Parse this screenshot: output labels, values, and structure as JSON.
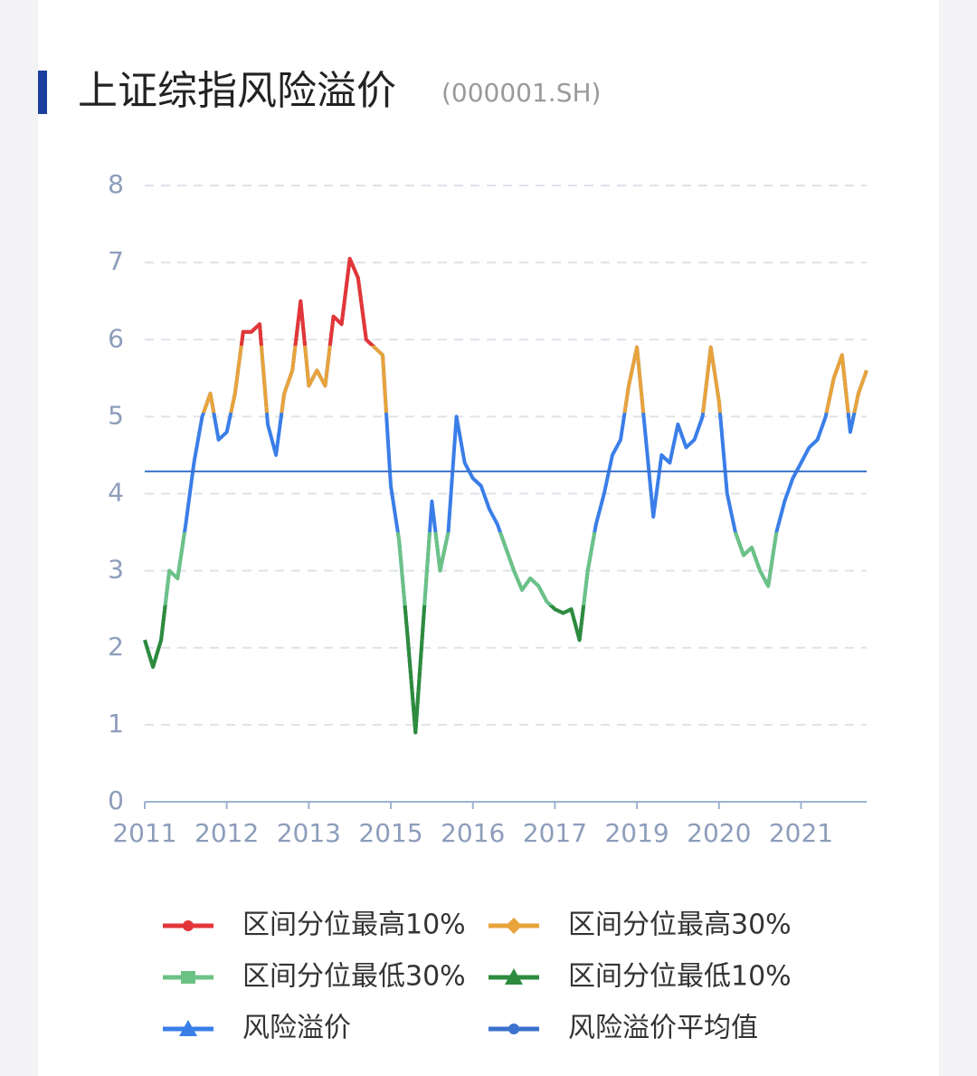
{
  "chart_data": {
    "type": "line",
    "title": "上证综指风险溢价",
    "subtitle": "(000001.SH)",
    "categories": [
      "2011",
      null,
      null,
      null,
      null,
      null,
      null,
      null,
      null,
      null,
      "2012",
      null,
      null,
      null,
      null,
      null,
      null,
      null,
      null,
      null,
      "2013",
      null,
      null,
      null,
      null,
      null,
      null,
      null,
      null,
      null,
      "2015",
      null,
      null,
      null,
      null,
      null,
      null,
      null,
      null,
      null,
      "2016",
      null,
      null,
      null,
      null,
      null,
      null,
      null,
      null,
      null,
      "2017",
      null,
      null,
      null,
      null,
      null,
      null,
      null,
      null,
      null,
      "2019",
      null,
      null,
      null,
      null,
      null,
      null,
      null,
      null,
      null,
      "2020",
      null,
      null,
      null,
      null,
      null,
      null,
      null,
      null,
      null,
      "2021",
      null,
      null,
      null,
      null,
      null,
      null,
      null,
      null
    ],
    "ylim": [
      0,
      8
    ],
    "yticks": [
      0,
      1,
      2,
      3,
      4,
      5,
      6,
      7,
      8
    ],
    "grid": true,
    "series": [
      {
        "name": "区间分位最高10%",
        "color": "#e2363a",
        "symbol": "circle",
        "threshold": 5.92
      },
      {
        "name": "区间分位最高30%",
        "color": "#e8a33b",
        "symbol": "diamond",
        "threshold": 5.05
      },
      {
        "name": "区间分位最低30%",
        "color": "#6cc285",
        "symbol": "rect",
        "threshold": 3.5
      },
      {
        "name": "区间分位最低10%",
        "color": "#2e8b3e",
        "symbol": "triangle",
        "threshold": 2.55
      },
      {
        "name": "风险溢价",
        "color": "#3a7ee8",
        "symbol": "triangle",
        "values": [
          2.1,
          1.75,
          2.1,
          3.0,
          2.9,
          3.6,
          4.4,
          5.0,
          5.3,
          4.7,
          4.8,
          5.3,
          6.1,
          6.1,
          6.2,
          4.9,
          4.5,
          5.3,
          5.6,
          6.5,
          5.4,
          5.6,
          5.4,
          6.3,
          6.2,
          7.05,
          6.8,
          6.0,
          5.9,
          5.8,
          4.1,
          3.4,
          2.2,
          0.9,
          2.4,
          3.9,
          3.0,
          3.5,
          5.0,
          4.4,
          4.2,
          4.1,
          3.8,
          3.6,
          3.3,
          3.0,
          2.75,
          2.9,
          2.8,
          2.6,
          2.5,
          2.45,
          2.5,
          2.1,
          3.0,
          3.6,
          4.0,
          4.5,
          4.7,
          5.4,
          5.9,
          4.8,
          3.7,
          4.5,
          4.4,
          4.9,
          4.6,
          4.7,
          5.0,
          5.9,
          5.2,
          4.0,
          3.5,
          3.2,
          3.3,
          3.0,
          2.8,
          3.5,
          3.9,
          4.2,
          4.4,
          4.6,
          4.7,
          5.0,
          5.5,
          5.8,
          4.8,
          5.3,
          5.6
        ]
      },
      {
        "name": "风险溢价平均值",
        "color": "#3b72cc",
        "symbol": "circle",
        "value": 4.29
      }
    ]
  }
}
